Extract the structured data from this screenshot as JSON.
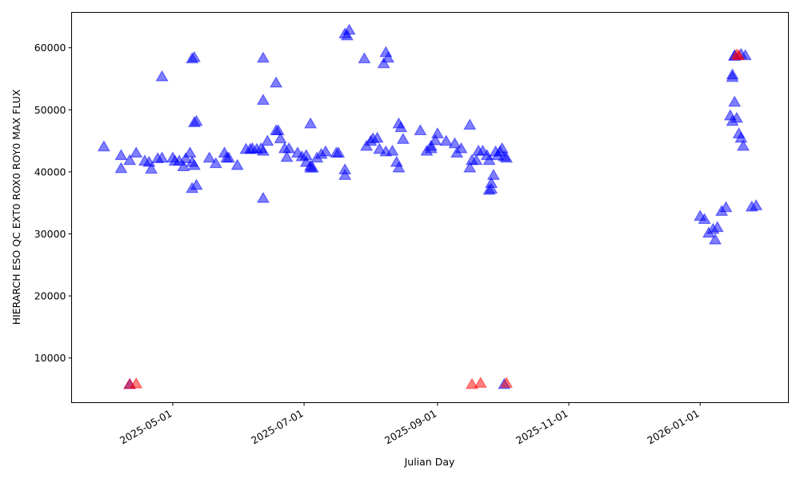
{
  "chart_data": {
    "type": "scatter",
    "title": "",
    "xlabel": "Julian Day",
    "ylabel": "HIERARCH ESO QC EXT0 ROX0 ROY0 MAX FLUX",
    "xlim": [
      "2025-03-15",
      "2026-02-11"
    ],
    "ylim": [
      2800,
      65700
    ],
    "grid": false,
    "marker": "triangle-up",
    "alpha": 0.5,
    "x_ticks": [
      "2025-05-01",
      "2025-07-01",
      "2025-09-01",
      "2025-11-01",
      "2026-01-01"
    ],
    "y_ticks": [
      10000,
      20000,
      30000,
      40000,
      50000,
      60000
    ],
    "series": [
      {
        "color": "#0000ff",
        "points": [
          [
            "2025-03-30",
            43900
          ],
          [
            "2025-04-07",
            42500
          ],
          [
            "2025-04-07",
            40400
          ],
          [
            "2025-04-11",
            41700
          ],
          [
            "2025-04-14",
            42900
          ],
          [
            "2025-04-18",
            41600
          ],
          [
            "2025-04-20",
            41400
          ],
          [
            "2025-04-21",
            40300
          ],
          [
            "2025-04-24",
            42000
          ],
          [
            "2025-04-26",
            55200
          ],
          [
            "2025-04-26",
            42100
          ],
          [
            "2025-05-01",
            42100
          ],
          [
            "2025-05-02",
            41600
          ],
          [
            "2025-05-04",
            41600
          ],
          [
            "2025-05-06",
            40700
          ],
          [
            "2025-05-07",
            42000
          ],
          [
            "2025-05-09",
            42900
          ],
          [
            "2025-05-10",
            58100
          ],
          [
            "2025-05-11",
            58300
          ],
          [
            "2025-05-10",
            41400
          ],
          [
            "2025-05-11",
            47800
          ],
          [
            "2025-05-12",
            48000
          ],
          [
            "2025-05-10",
            37200
          ],
          [
            "2025-05-12",
            37700
          ],
          [
            "2025-05-11",
            40900
          ],
          [
            "2025-05-18",
            42100
          ],
          [
            "2025-05-21",
            41200
          ],
          [
            "2025-05-25",
            42900
          ],
          [
            "2025-05-26",
            42100
          ],
          [
            "2025-05-27",
            42100
          ],
          [
            "2025-05-31",
            40900
          ],
          [
            "2025-06-04",
            43500
          ],
          [
            "2025-06-06",
            43500
          ],
          [
            "2025-06-07",
            43600
          ],
          [
            "2025-06-09",
            43500
          ],
          [
            "2025-06-11",
            43600
          ],
          [
            "2025-06-12",
            43200
          ],
          [
            "2025-06-12",
            58200
          ],
          [
            "2025-06-12",
            35600
          ],
          [
            "2025-06-12",
            51400
          ],
          [
            "2025-06-14",
            44800
          ],
          [
            "2025-06-18",
            54200
          ],
          [
            "2025-06-18",
            46500
          ],
          [
            "2025-06-19",
            46500
          ],
          [
            "2025-06-20",
            45200
          ],
          [
            "2025-06-22",
            43600
          ],
          [
            "2025-06-23",
            42200
          ],
          [
            "2025-06-24",
            43600
          ],
          [
            "2025-06-28",
            42900
          ],
          [
            "2025-06-30",
            42300
          ],
          [
            "2025-07-02",
            42500
          ],
          [
            "2025-07-02",
            41400
          ],
          [
            "2025-07-04",
            40500
          ],
          [
            "2025-07-04",
            47600
          ],
          [
            "2025-07-04",
            40800
          ],
          [
            "2025-07-05",
            40500
          ],
          [
            "2025-07-07",
            42100
          ],
          [
            "2025-07-09",
            42700
          ],
          [
            "2025-07-11",
            43100
          ],
          [
            "2025-07-16",
            42900
          ],
          [
            "2025-07-17",
            42900
          ],
          [
            "2025-07-20",
            40200
          ],
          [
            "2025-07-20",
            39300
          ],
          [
            "2025-07-20",
            62100
          ],
          [
            "2025-07-21",
            61800
          ],
          [
            "2025-07-22",
            62700
          ],
          [
            "2025-07-29",
            58100
          ],
          [
            "2025-07-30",
            44000
          ],
          [
            "2025-08-01",
            44800
          ],
          [
            "2025-08-02",
            45200
          ],
          [
            "2025-08-04",
            45300
          ],
          [
            "2025-08-05",
            43500
          ],
          [
            "2025-08-07",
            57300
          ],
          [
            "2025-08-08",
            43100
          ],
          [
            "2025-08-08",
            59100
          ],
          [
            "2025-08-09",
            58200
          ],
          [
            "2025-08-11",
            43200
          ],
          [
            "2025-08-13",
            41400
          ],
          [
            "2025-08-14",
            40500
          ],
          [
            "2025-08-14",
            47600
          ],
          [
            "2025-08-15",
            47000
          ],
          [
            "2025-08-16",
            45100
          ],
          [
            "2025-08-24",
            46500
          ],
          [
            "2025-08-27",
            43200
          ],
          [
            "2025-08-29",
            44000
          ],
          [
            "2025-08-29",
            43600
          ],
          [
            "2025-08-31",
            44900
          ],
          [
            "2025-09-01",
            46000
          ],
          [
            "2025-09-05",
            44800
          ],
          [
            "2025-09-09",
            44400
          ],
          [
            "2025-09-10",
            42900
          ],
          [
            "2025-09-12",
            43600
          ],
          [
            "2025-09-16",
            47400
          ],
          [
            "2025-09-16",
            40500
          ],
          [
            "2025-09-17",
            41700
          ],
          [
            "2025-09-19",
            41700
          ],
          [
            "2025-09-20",
            43200
          ],
          [
            "2025-09-22",
            43200
          ],
          [
            "2025-09-24",
            42500
          ],
          [
            "2025-09-25",
            41700
          ],
          [
            "2025-09-25",
            36900
          ],
          [
            "2025-09-26",
            37100
          ],
          [
            "2025-09-26",
            38000
          ],
          [
            "2025-09-27",
            39300
          ],
          [
            "2025-09-28",
            43100
          ],
          [
            "2025-09-29",
            42500
          ],
          [
            "2025-09-30",
            43100
          ],
          [
            "2025-10-01",
            43600
          ],
          [
            "2025-10-02",
            42300
          ],
          [
            "2025-10-03",
            42100
          ],
          [
            "2025-10-02",
            5600
          ],
          [
            "2025-04-11",
            5600
          ],
          [
            "2026-01-01",
            32700
          ],
          [
            "2026-01-03",
            32200
          ],
          [
            "2026-01-05",
            30000
          ],
          [
            "2026-01-07",
            30600
          ],
          [
            "2026-01-08",
            28900
          ],
          [
            "2026-01-09",
            30900
          ],
          [
            "2026-01-11",
            33500
          ],
          [
            "2026-01-13",
            34100
          ],
          [
            "2026-01-15",
            48900
          ],
          [
            "2026-01-16",
            48000
          ],
          [
            "2026-01-16",
            55500
          ],
          [
            "2026-01-16",
            55100
          ],
          [
            "2026-01-17",
            51100
          ],
          [
            "2026-01-17",
            58500
          ],
          [
            "2026-01-17",
            58600
          ],
          [
            "2026-01-18",
            48500
          ],
          [
            "2026-01-19",
            46000
          ],
          [
            "2026-01-20",
            45300
          ],
          [
            "2026-01-21",
            44000
          ],
          [
            "2026-01-20",
            58800
          ],
          [
            "2026-01-22",
            58600
          ],
          [
            "2026-01-25",
            34200
          ],
          [
            "2026-01-27",
            34400
          ]
        ]
      },
      {
        "color": "#ff0000",
        "points": [
          [
            "2025-04-11",
            5600
          ],
          [
            "2025-04-14",
            5700
          ],
          [
            "2025-09-17",
            5600
          ],
          [
            "2025-09-21",
            5800
          ],
          [
            "2025-10-03",
            5800
          ],
          [
            "2026-01-18",
            58700
          ],
          [
            "2026-01-19",
            58600
          ]
        ]
      }
    ]
  }
}
